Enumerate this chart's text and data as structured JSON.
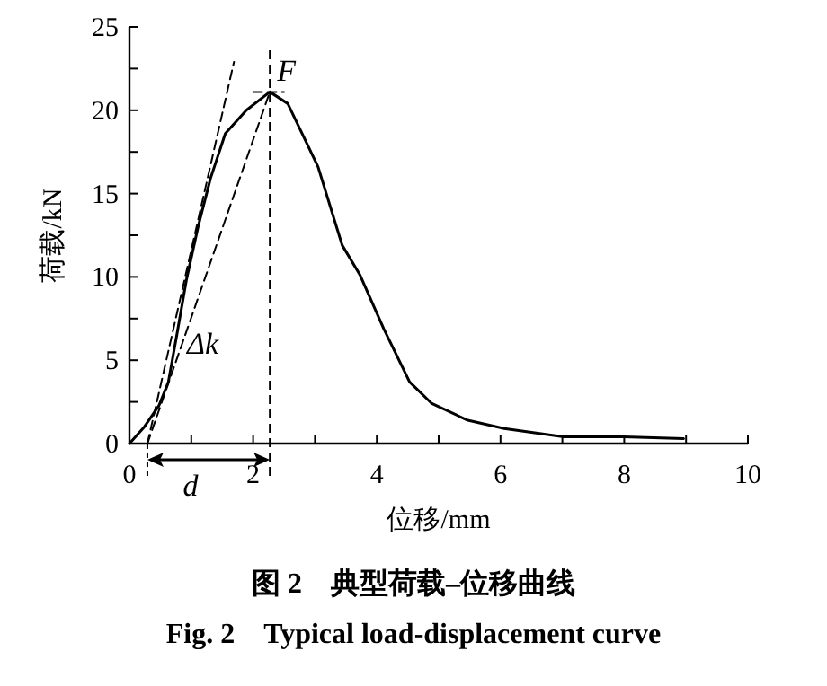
{
  "chart_data": {
    "type": "line",
    "title": "图 2　典型荷载–位移曲线",
    "subtitle": "Fig. 2　Typical load-displacement curve",
    "xlabel": "位移/mm",
    "ylabel": "荷载/kN",
    "xlim": [
      0,
      10
    ],
    "ylim": [
      0,
      25
    ],
    "xticks": [
      0,
      {
        "value": 1,
        "label": null
      },
      2,
      {
        "value": 3,
        "label": null
      },
      4,
      {
        "value": 5,
        "label": null
      },
      6,
      {
        "value": 7,
        "label": null
      },
      8,
      {
        "value": 9,
        "label": null
      },
      10
    ],
    "yticks": [
      0,
      {
        "value": 2.5,
        "label": null
      },
      5,
      {
        "value": 7.5,
        "label": null
      },
      10,
      {
        "value": 12.5,
        "label": null
      },
      15,
      {
        "value": 17.5,
        "label": null
      },
      20,
      {
        "value": 22.5,
        "label": null
      },
      25
    ],
    "grid": false,
    "series": [
      {
        "color": "#000000",
        "line_style": "solid",
        "x": [
          0,
          0.24,
          0.48,
          0.63,
          0.77,
          0.92,
          1.11,
          1.31,
          1.55,
          1.89,
          2.27,
          2.56,
          3.05,
          3.44,
          3.73,
          4.11,
          4.53,
          4.89,
          5.47,
          6.06,
          7.02,
          7.99,
          8.96
        ],
        "values": [
          0,
          1.0,
          2.3,
          3.7,
          6.6,
          9.8,
          13.0,
          15.9,
          18.6,
          20.0,
          21.1,
          20.4,
          16.6,
          11.9,
          10.1,
          6.9,
          3.7,
          2.4,
          1.4,
          0.9,
          0.4,
          0.4,
          0.3
        ]
      },
      {
        "color": "#000000",
        "line_style": "dashed",
        "x": [
          0.29,
          1.69
        ],
        "values": [
          0,
          22.9
        ]
      },
      {
        "color": "#000000",
        "line_style": "dashed",
        "x": [
          0.29,
          2.27
        ],
        "values": [
          0,
          21.1
        ]
      },
      {
        "color": "#000000",
        "line_style": "dashed",
        "x": [
          2.0,
          2.5
        ],
        "values": [
          21.1,
          21.1
        ]
      }
    ],
    "ref_lines": [
      {
        "axis": "x",
        "value": 2.27,
        "line_style": "dashed",
        "color": "#000000"
      }
    ],
    "annotations": [
      {
        "text": "F",
        "x": 2.27,
        "y": 21.1
      },
      "Δk",
      "d"
    ]
  }
}
